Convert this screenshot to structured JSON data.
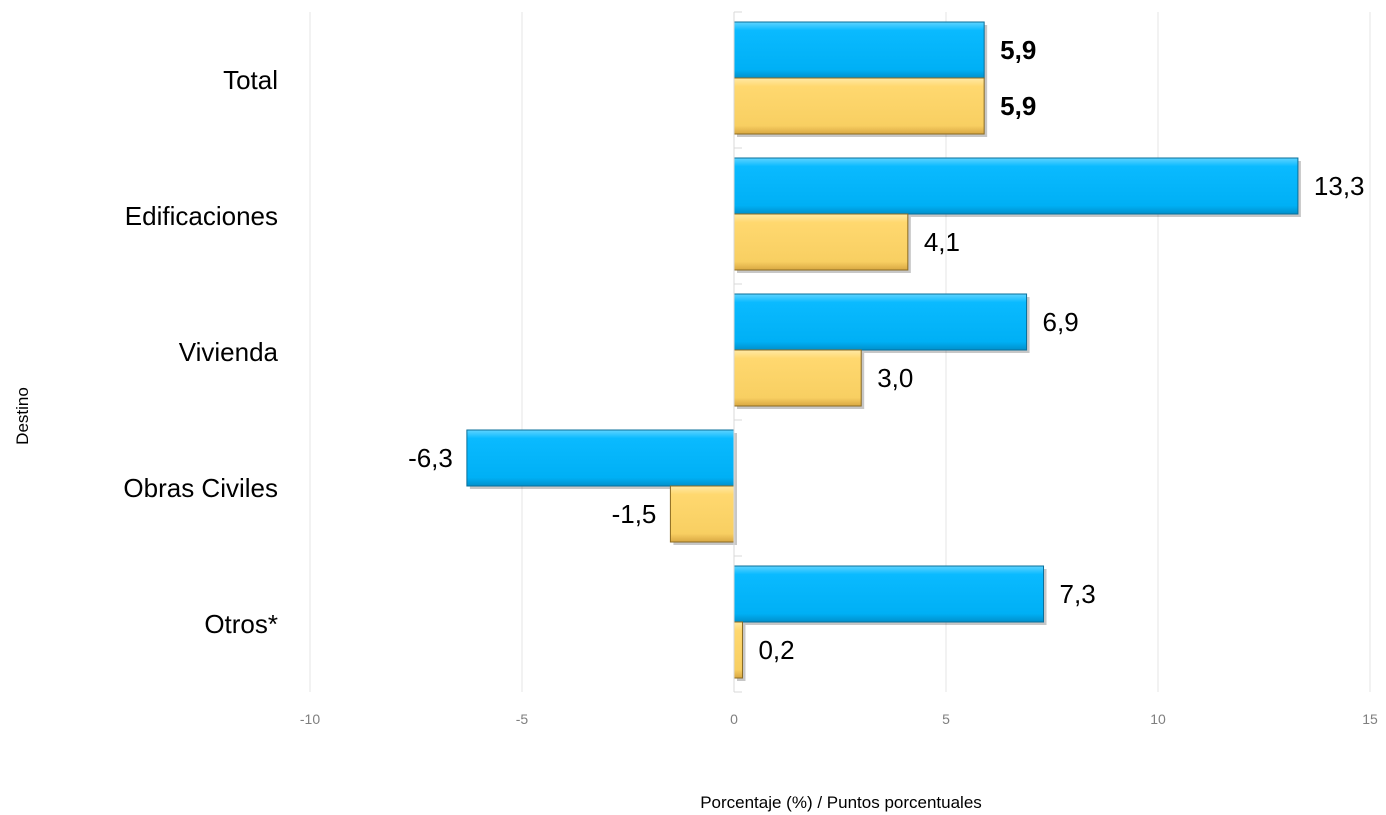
{
  "chart_data": {
    "type": "bar",
    "orientation": "horizontal",
    "title": "",
    "xlabel": "Porcentaje (%) / Puntos porcentuales",
    "ylabel": "Destino",
    "categories": [
      "Total",
      "Edificaciones",
      "Vivienda",
      "Obras Civiles",
      "Otros*"
    ],
    "series": [
      {
        "values": [
          5.9,
          13.3,
          6.9,
          -6.3,
          7.3
        ],
        "labels": [
          "5,9",
          "13,3",
          "6,9",
          "-6,3",
          "7,3"
        ],
        "color": "#0abaff"
      },
      {
        "values": [
          5.9,
          4.1,
          3.0,
          -1.5,
          0.2
        ],
        "labels": [
          "5,9",
          "4,1",
          "3,0",
          "-1,5",
          "0,2"
        ],
        "color": "#ffd86f"
      }
    ],
    "xlim": [
      -10,
      15
    ],
    "xticks": [
      -10,
      -5,
      0,
      5,
      10,
      15
    ],
    "xtick_labels": [
      "-10",
      "-5",
      "0",
      "5",
      "10",
      "15"
    ],
    "grid": true,
    "legend": false,
    "bold_category": "Total"
  }
}
